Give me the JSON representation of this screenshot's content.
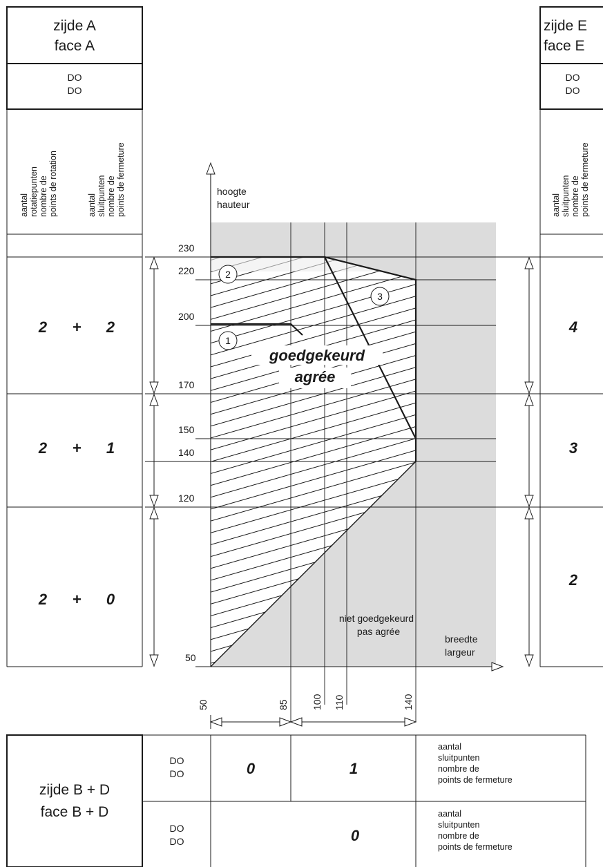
{
  "side_a": {
    "title_nl": "zijde A",
    "title_fr": "face A",
    "sub_nl": "DO",
    "sub_fr": "DO",
    "col1": [
      "aantal",
      "rotatiepunten",
      "nombre de",
      "points de rotation"
    ],
    "col2": [
      "aantal",
      "sluitpunten",
      "nombre de",
      "points de fermeture"
    ]
  },
  "side_e": {
    "title_nl": "zijde E",
    "title_fr": "face E",
    "sub_nl": "DO",
    "sub_fr": "DO",
    "col": [
      "aantal",
      "sluitpunten",
      "nombre de",
      "points de fermeture"
    ]
  },
  "rows_left": [
    {
      "a": "2",
      "plus": "+",
      "b": "2"
    },
    {
      "a": "2",
      "plus": "+",
      "b": "1"
    },
    {
      "a": "2",
      "plus": "+",
      "b": "0"
    }
  ],
  "rows_right": [
    "4",
    "3",
    "2"
  ],
  "axes": {
    "y_nl": "hoogte",
    "y_fr": "hauteur",
    "x_nl": "breedte",
    "x_fr": "largeur",
    "y_ticks": [
      "230",
      "220",
      "200",
      "170",
      "150",
      "140",
      "120",
      "50"
    ],
    "x_ticks": [
      "50",
      "85",
      "100",
      "110",
      "140"
    ]
  },
  "approved_nl": "goedgekeurd",
  "approved_fr": "agrée",
  "not_approved_nl": "niet goedgekeurd",
  "not_approved_fr": "pas agrée",
  "zone_labels": [
    "1",
    "2",
    "3"
  ],
  "bottom": {
    "title_nl": "zijde B + D",
    "title_fr": "face B + D",
    "row1": {
      "do_nl": "DO",
      "do_fr": "DO",
      "v1": "0",
      "v2": "1",
      "desc": [
        "aantal",
        "sluitpunten",
        "nombre de",
        "points de fermeture"
      ]
    },
    "row2": {
      "do_nl": "DO",
      "do_fr": "DO",
      "v": "0",
      "desc": [
        "aantal",
        "sluitpunten",
        "nombre de",
        "points de fermeture"
      ]
    }
  }
}
